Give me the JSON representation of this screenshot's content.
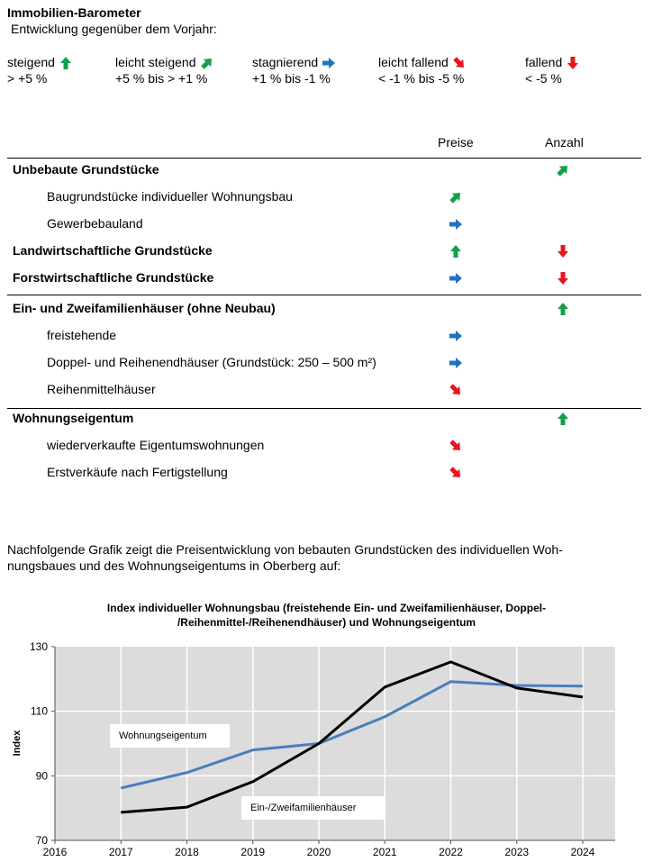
{
  "header": {
    "title": "Immobilien-Barometer",
    "subtitle": "Entwicklung gegenüber dem Vorjahr:"
  },
  "colors": {
    "green": "#12a04a",
    "blue": "#1f73c0",
    "red": "#e8141c",
    "blue_line": "#4a7ebb",
    "black_line": "#000000",
    "plot_bg": "#dcdcdc"
  },
  "legend": [
    {
      "label": "steigend",
      "range": "> +5 %",
      "icon": "arrow-up-icon",
      "dir": "up"
    },
    {
      "label": "leicht steigend",
      "range": "+5 % bis > +1 %",
      "icon": "arrow-up-right-icon",
      "dir": "up-right"
    },
    {
      "label": "stagnierend",
      "range": "+1 % bis -1 %",
      "icon": "arrow-right-icon",
      "dir": "right"
    },
    {
      "label": "leicht fallend",
      "range": "< -1 % bis -5 %",
      "icon": "arrow-down-right-icon",
      "dir": "down-right"
    },
    {
      "label": "fallend",
      "range": "< -5 %",
      "icon": "arrow-down-icon",
      "dir": "down"
    }
  ],
  "table": {
    "columns": [
      "Preise",
      "Anzahl"
    ],
    "rows": [
      {
        "label": "Unbebaute Grundstücke",
        "bold": true,
        "preise": null,
        "anzahl": "up-right"
      },
      {
        "label": "Baugrundstücke individueller Wohnungsbau",
        "bold": false,
        "preise": "up-right",
        "anzahl": null
      },
      {
        "label": "Gewerbebauland",
        "bold": false,
        "preise": "right",
        "anzahl": null
      },
      {
        "label": "Landwirtschaftliche Grundstücke",
        "bold": true,
        "preise": "up",
        "anzahl": "down"
      },
      {
        "label": "Forstwirtschaftliche Grundstücke",
        "bold": true,
        "preise": "right",
        "anzahl": "down"
      },
      {
        "label": "Ein- und Zweifamilienhäuser (ohne Neubau)",
        "bold": true,
        "preise": null,
        "anzahl": "up"
      },
      {
        "label": "freistehende",
        "bold": false,
        "preise": "right",
        "anzahl": null
      },
      {
        "label": "Doppel- und Reihenendhäuser (Grundstück: 250 – 500 m²)",
        "bold": false,
        "preise": "right",
        "anzahl": null
      },
      {
        "label": "Reihenmittelhäuser",
        "bold": false,
        "preise": "down-right",
        "anzahl": null
      },
      {
        "label": "Wohnungseigentum",
        "bold": true,
        "preise": null,
        "anzahl": "up"
      },
      {
        "label": "wiederverkaufte Eigentumswohnungen",
        "bold": false,
        "preise": "down-right",
        "anzahl": null
      },
      {
        "label": "Erstverkäufe nach Fertigstellung",
        "bold": false,
        "preise": "down-right",
        "anzahl": null
      }
    ]
  },
  "paragraph": {
    "line1": "Nachfolgende Grafik zeigt die Preisentwicklung von bebauten Grundstücken des individuellen Woh-",
    "line2": "nungsbaues und des Wohnungseigentums in Oberberg auf:"
  },
  "chart_data": {
    "type": "line",
    "title_line1": "Index individueller Wohnungsbau (freistehende Ein- und Zweifamilienhäuser, Doppel-",
    "title_line2": "/Reihenmittel-/Reihenendhäuser) und Wohnungseigentum",
    "ylabel": "Index",
    "xlabel": "",
    "xlim": [
      2016,
      2024.5
    ],
    "ylim": [
      70,
      130
    ],
    "xticks": [
      2016,
      2017,
      2018,
      2019,
      2020,
      2021,
      2022,
      2023,
      2024
    ],
    "yticks": [
      70,
      90,
      110,
      130
    ],
    "grid": true,
    "x": [
      2017,
      2018,
      2019,
      2020,
      2021,
      2022,
      2023,
      2024
    ],
    "series": [
      {
        "name": "Wohnungseigentum",
        "color": "#4a7ebb",
        "values": [
          86.2,
          91,
          98,
          100,
          108.3,
          119.2,
          118,
          117.8
        ]
      },
      {
        "name": "Ein-/Zweifamilienhäuser",
        "color": "#000000",
        "values": [
          78.7,
          80.3,
          88.2,
          100,
          117.5,
          125.3,
          117.2,
          114.4
        ]
      }
    ]
  }
}
